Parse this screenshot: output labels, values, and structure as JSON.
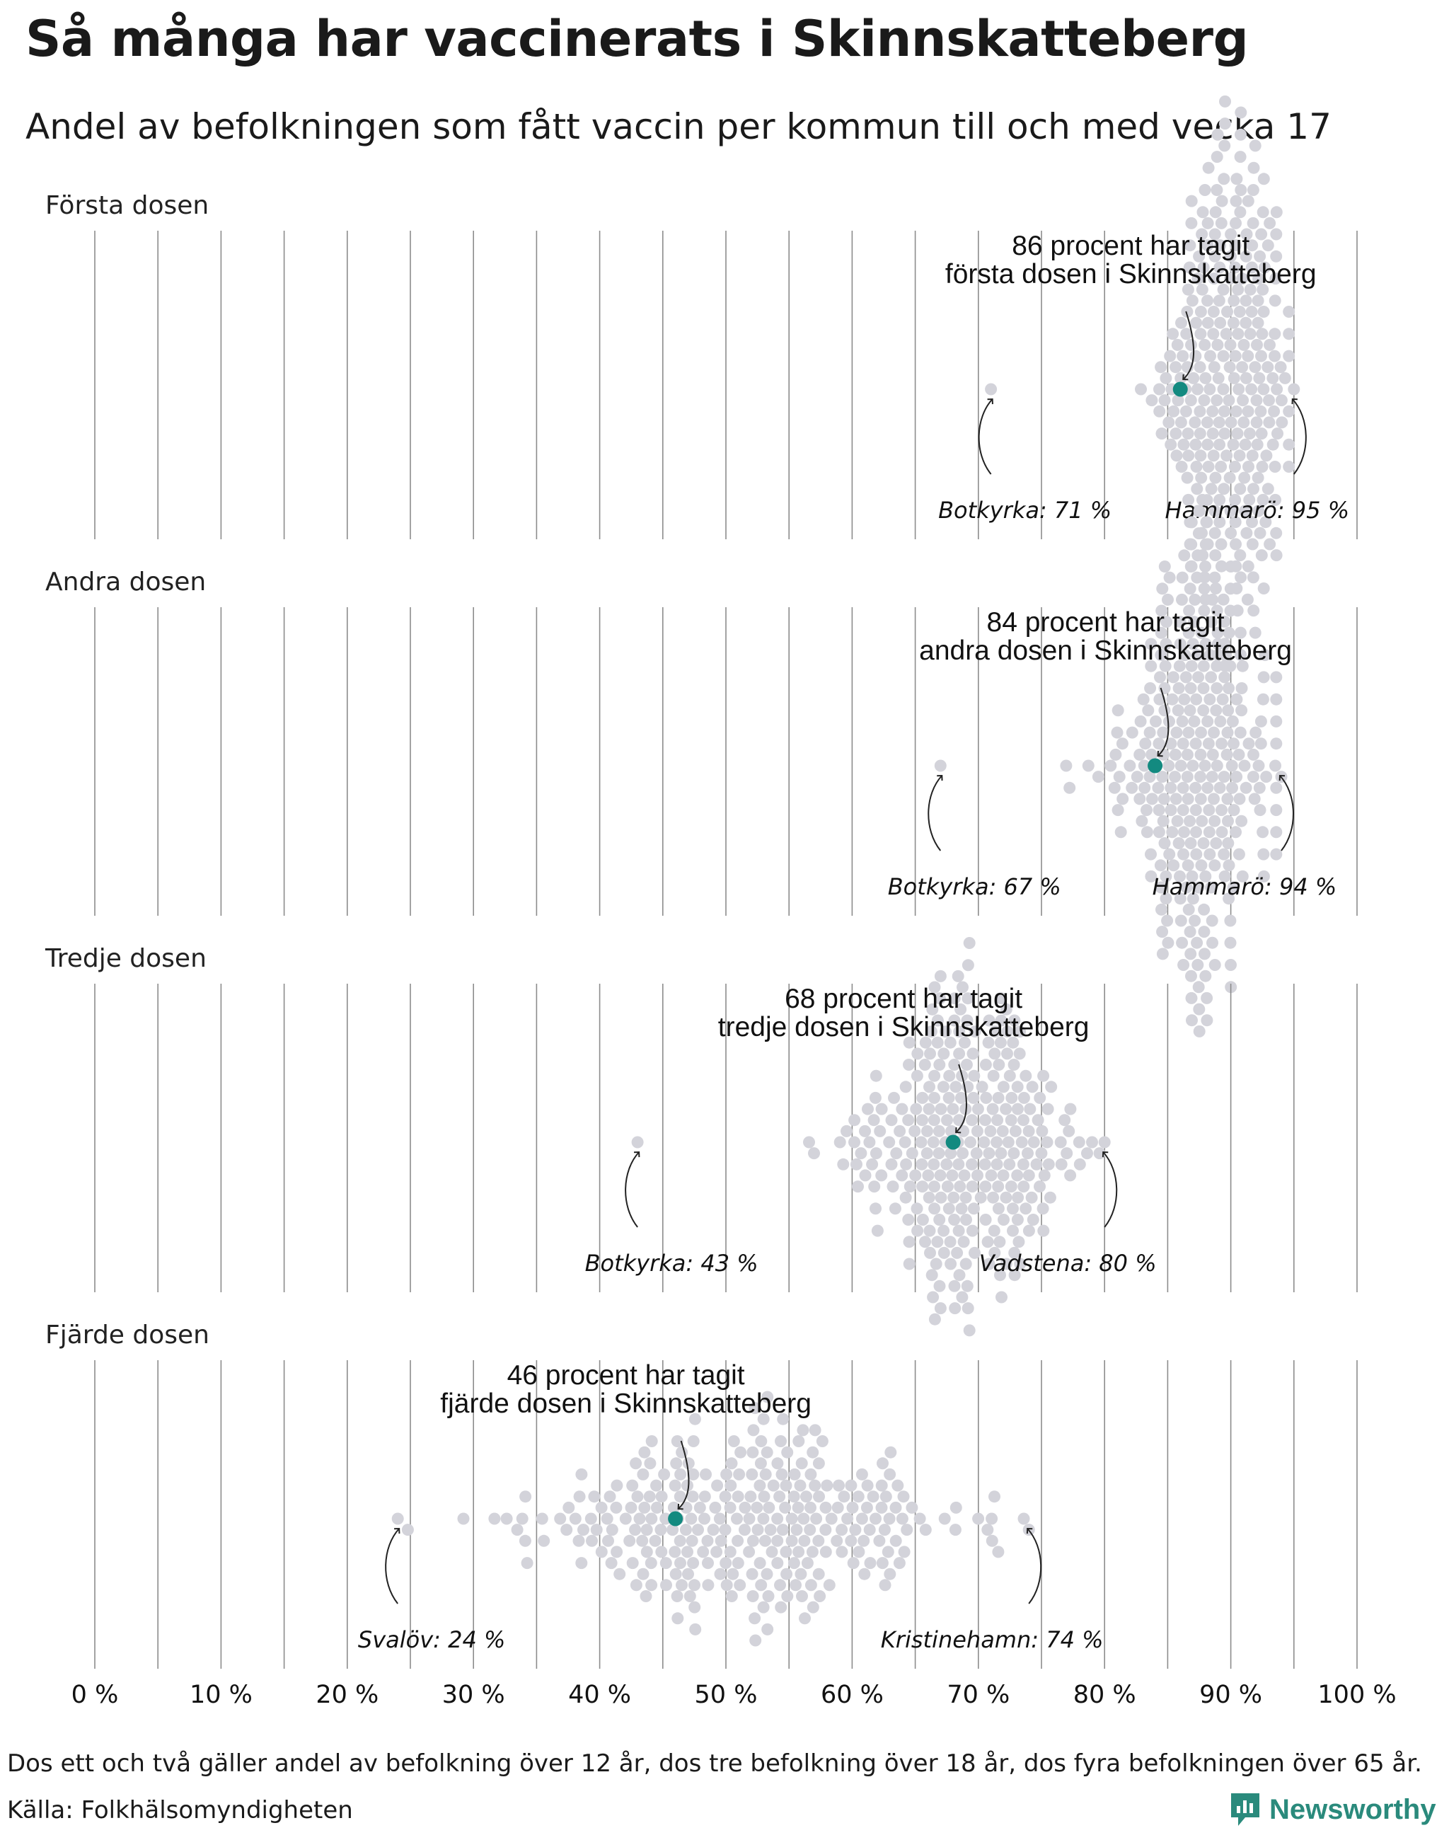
{
  "title": "Så många har vaccinerats i Skinnskatteberg",
  "subtitle": "Andel av befolkningen som fått vaccin per kommun till och med vecka 17",
  "footnote": "Dos ett och två gäller andel av befolkning över 12 år, dos tre befolkning över 18 år, dos fyra befolkningen över 65 år.",
  "source": "Källa: Folkhälsomyndigheten",
  "brand": "Newsworthy",
  "colors": {
    "dot": "#d3d3da",
    "highlight": "#138a80",
    "grid": "#8c8c8c",
    "brand": "#2a8a7c"
  },
  "chart_data": {
    "type": "beeswarm",
    "x_axis": {
      "min": 0,
      "max": 100,
      "unit": "%",
      "ticks": [
        "0 %",
        "10 %",
        "20 %",
        "30 %",
        "40 %",
        "50 %",
        "60 %",
        "70 %",
        "80 %",
        "90 %",
        "100 %"
      ]
    },
    "panels": [
      {
        "label": "Första dosen",
        "highlight": {
          "municipality": "Skinnskatteberg",
          "value": 86,
          "annotation_line1": "86 procent har tagit",
          "annotation_line2": "första dosen i Skinnskatteberg"
        },
        "min": {
          "municipality": "Botkyrka",
          "value": 71,
          "label": "Botkyrka: 71 %"
        },
        "max": {
          "municipality": "Hammarö",
          "value": 95,
          "label": "Hammarö: 95 %"
        },
        "distribution": {
          "n": 290,
          "mean": 89.7,
          "sd": 2.6
        }
      },
      {
        "label": "Andra dosen",
        "highlight": {
          "municipality": "Skinnskatteberg",
          "value": 84,
          "annotation_line1": "84 procent har tagit",
          "annotation_line2": "andra dosen i Skinnskatteberg"
        },
        "min": {
          "municipality": "Botkyrka",
          "value": 67,
          "label": "Botkyrka: 67 %"
        },
        "max": {
          "municipality": "Hammarö",
          "value": 94,
          "label": "Hammarö: 94 %"
        },
        "distribution": {
          "n": 290,
          "mean": 87.4,
          "sd": 3.0
        }
      },
      {
        "label": "Tredje dosen",
        "highlight": {
          "municipality": "Skinnskatteberg",
          "value": 68,
          "annotation_line1": "68 procent har tagit",
          "annotation_line2": "tredje dosen i Skinnskatteberg"
        },
        "min": {
          "municipality": "Botkyrka",
          "value": 43,
          "label": "Botkyrka: 43 %"
        },
        "max": {
          "municipality": "Vadstena",
          "value": 80,
          "label": "Vadstena: 80 %"
        },
        "distribution": {
          "n": 290,
          "mean": 68.5,
          "sd": 4.5
        }
      },
      {
        "label": "Fjärde dosen",
        "highlight": {
          "municipality": "Skinnskatteberg",
          "value": 46,
          "annotation_line1": "46 procent har tagit",
          "annotation_line2": "fjärde dosen i Skinnskatteberg"
        },
        "min": {
          "municipality": "Svalöv",
          "value": 24,
          "label": "Svalöv: 24 %"
        },
        "max": {
          "municipality": "Kristinehamn",
          "value": 74,
          "label": "Kristinehamn: 74 %"
        },
        "distribution": {
          "n": 290,
          "mean": 52.0,
          "sd": 8.0
        }
      }
    ]
  }
}
